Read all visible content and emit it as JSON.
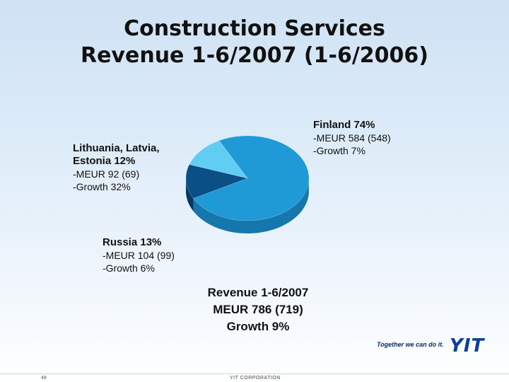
{
  "title": {
    "line1": "Construction Services",
    "line2": "Revenue 1-6/2007 (1-6/2006)"
  },
  "chart_data": {
    "type": "pie",
    "slices": [
      {
        "label": "Finland 74%",
        "value": 74,
        "meur": "-MEUR 584 (548)",
        "growth": "-Growth 7%",
        "color": "#1f9ad6",
        "side": "#1577ac"
      },
      {
        "label": "Russia 13%",
        "value": 13,
        "meur": "-MEUR 104 (99)",
        "growth": "-Growth 6%",
        "color": "#0a4f86",
        "side": "#07385f"
      },
      {
        "label": "Lithuania, Latvia, Estonia 12%",
        "value": 12,
        "meur": "-MEUR 92 (69)",
        "growth": "-Growth 32%",
        "color": "#62cdf2",
        "side": "#3ea8cf"
      }
    ]
  },
  "labels": {
    "finland": {
      "head": "Finland 74%",
      "meur": "-MEUR 584 (548)",
      "growth": "-Growth 7%"
    },
    "baltics": {
      "head1": "Lithuania, Latvia,",
      "head2": "Estonia 12%",
      "meur": "-MEUR 92 (69)",
      "growth": "-Growth 32%"
    },
    "russia": {
      "head": "Russia 13%",
      "meur": "-MEUR 104 (99)",
      "growth": "-Growth 6%"
    }
  },
  "total": {
    "line1": "Revenue 1-6/2007",
    "line2": "MEUR 786 (719)",
    "line3": "Growth 9%"
  },
  "footer": {
    "page": "48",
    "corporation": "YIT CORPORATION",
    "tagline": "Together we can do it.",
    "logo": "YIT"
  }
}
